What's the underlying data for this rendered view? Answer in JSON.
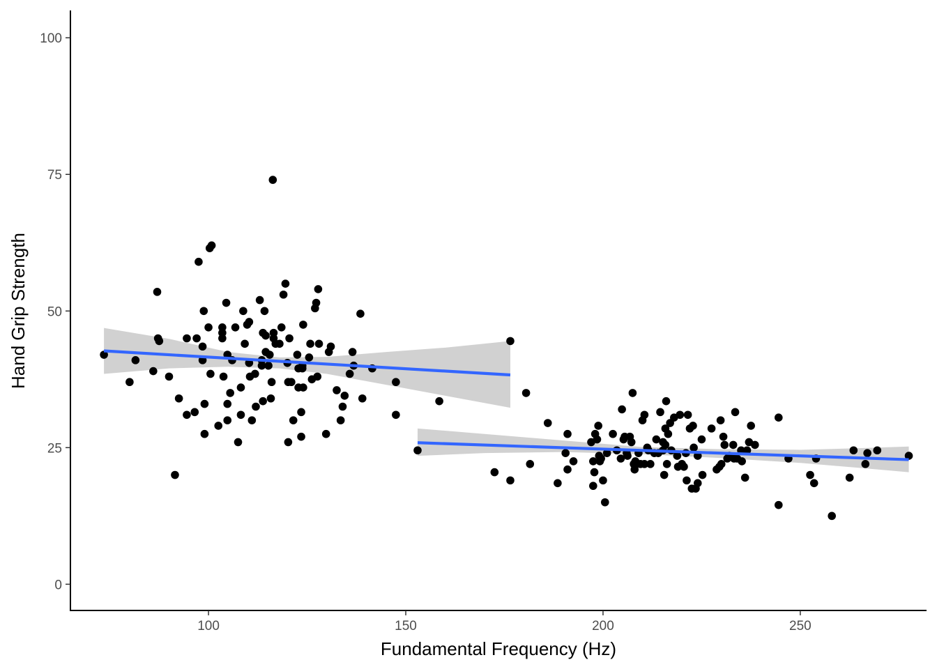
{
  "chart_data": {
    "type": "scatter",
    "title": "",
    "xlabel": "Fundamental Frequency (Hz)",
    "ylabel": "Hand Grip Strength",
    "xlim": [
      65,
      282
    ],
    "ylim": [
      -4.8,
      105
    ],
    "x_ticks": [
      100,
      150,
      200,
      250
    ],
    "x_tick_labels": [
      "100",
      "150",
      "200",
      "250"
    ],
    "y_ticks": [
      0,
      25,
      50,
      75,
      100
    ],
    "y_tick_labels": [
      "0",
      "25",
      "50",
      "75",
      "100"
    ],
    "grid": false,
    "legend": "none",
    "point_color": "#000000",
    "fit_color": "#3366FF",
    "band_color": "#999999",
    "points": [
      [
        73.5,
        42
      ],
      [
        80,
        37
      ],
      [
        81.5,
        41
      ],
      [
        86,
        39
      ],
      [
        87,
        53.5
      ],
      [
        87.2,
        45
      ],
      [
        87.5,
        44.5
      ],
      [
        90,
        38
      ],
      [
        91.5,
        20
      ],
      [
        92.5,
        34
      ],
      [
        94.5,
        45
      ],
      [
        94.5,
        31
      ],
      [
        96.5,
        31.5
      ],
      [
        97,
        45
      ],
      [
        97.5,
        59
      ],
      [
        98.5,
        43.5
      ],
      [
        98.5,
        41
      ],
      [
        98.8,
        50
      ],
      [
        99,
        27.5
      ],
      [
        99,
        33
      ],
      [
        100,
        47
      ],
      [
        100.3,
        61.5
      ],
      [
        100.8,
        62
      ],
      [
        100.5,
        38.5
      ],
      [
        102.5,
        29
      ],
      [
        103.5,
        47
      ],
      [
        103.5,
        46
      ],
      [
        103.5,
        45
      ],
      [
        103.8,
        38
      ],
      [
        104.5,
        51.5
      ],
      [
        104.8,
        42
      ],
      [
        104.8,
        33
      ],
      [
        104.8,
        30
      ],
      [
        105.5,
        35
      ],
      [
        106,
        41
      ],
      [
        106.8,
        47
      ],
      [
        107.5,
        26
      ],
      [
        108.2,
        31
      ],
      [
        108.2,
        36
      ],
      [
        108.8,
        50
      ],
      [
        109.2,
        44
      ],
      [
        109.8,
        47.5
      ],
      [
        110.3,
        48
      ],
      [
        110.3,
        40.5
      ],
      [
        110.5,
        38
      ],
      [
        111,
        30
      ],
      [
        111.8,
        38.5
      ],
      [
        112,
        32.5
      ],
      [
        113,
        52
      ],
      [
        113.5,
        41
      ],
      [
        113.5,
        40
      ],
      [
        113.8,
        33.5
      ],
      [
        113.8,
        46
      ],
      [
        114.2,
        50
      ],
      [
        114.5,
        45.5
      ],
      [
        114.5,
        42.5
      ],
      [
        115.2,
        40
      ],
      [
        115.5,
        42
      ],
      [
        115.8,
        34
      ],
      [
        116,
        37
      ],
      [
        116.3,
        74
      ],
      [
        116.5,
        45
      ],
      [
        116.5,
        46
      ],
      [
        117,
        44
      ],
      [
        118,
        44
      ],
      [
        118.5,
        47
      ],
      [
        119,
        53
      ],
      [
        119.5,
        55
      ],
      [
        120,
        40.5
      ],
      [
        120.2,
        37
      ],
      [
        120.2,
        26
      ],
      [
        120.5,
        45
      ],
      [
        121,
        37
      ],
      [
        121.5,
        30
      ],
      [
        122.5,
        42
      ],
      [
        122.8,
        39.5
      ],
      [
        122.8,
        36
      ],
      [
        123.5,
        27
      ],
      [
        123.5,
        31.5
      ],
      [
        123.8,
        39.5
      ],
      [
        123.8,
        40
      ],
      [
        124,
        47.5
      ],
      [
        124,
        36
      ],
      [
        125.5,
        41.5
      ],
      [
        125.8,
        44
      ],
      [
        126.2,
        37.5
      ],
      [
        127,
        50.5
      ],
      [
        127.3,
        51.5
      ],
      [
        127.6,
        38
      ],
      [
        127.8,
        54
      ],
      [
        128,
        44
      ],
      [
        129.8,
        27.5
      ],
      [
        130.5,
        42.5
      ],
      [
        131,
        43.5
      ],
      [
        132.5,
        35.5
      ],
      [
        133.5,
        30
      ],
      [
        134,
        32.5
      ],
      [
        134.5,
        34.5
      ],
      [
        135.8,
        38.5
      ],
      [
        136.5,
        42.5
      ],
      [
        136.8,
        40
      ],
      [
        138.5,
        49.5
      ],
      [
        139,
        34
      ],
      [
        141.5,
        39.5
      ],
      [
        147.5,
        37
      ],
      [
        147.5,
        31
      ],
      [
        153,
        24.5
      ],
      [
        158.5,
        33.5
      ],
      [
        172.5,
        20.5
      ],
      [
        176.5,
        44.5
      ],
      [
        176.5,
        19
      ],
      [
        180.5,
        35
      ],
      [
        181.5,
        22
      ],
      [
        186,
        29.5
      ],
      [
        188.5,
        18.5
      ],
      [
        190.5,
        24
      ],
      [
        191,
        27.5
      ],
      [
        191,
        21
      ],
      [
        192.5,
        22.5
      ],
      [
        197,
        26
      ],
      [
        197.5,
        22.5
      ],
      [
        197.5,
        18
      ],
      [
        197.8,
        20.5
      ],
      [
        198,
        27.5
      ],
      [
        198.5,
        26.5
      ],
      [
        198.8,
        29
      ],
      [
        199,
        23.5
      ],
      [
        199.2,
        22.5
      ],
      [
        199.5,
        23
      ],
      [
        200,
        19
      ],
      [
        200.5,
        15
      ],
      [
        201,
        24
      ],
      [
        202.5,
        27.5
      ],
      [
        203.5,
        24.5
      ],
      [
        204.5,
        23
      ],
      [
        204.8,
        32
      ],
      [
        205.2,
        26.5
      ],
      [
        205.5,
        27
      ],
      [
        206,
        24
      ],
      [
        206.2,
        23.5
      ],
      [
        206.8,
        27
      ],
      [
        207.2,
        26
      ],
      [
        207.5,
        35
      ],
      [
        207.8,
        22
      ],
      [
        208,
        21
      ],
      [
        208.2,
        22.5
      ],
      [
        208.5,
        22
      ],
      [
        209,
        24
      ],
      [
        209.5,
        22
      ],
      [
        210,
        30
      ],
      [
        210.5,
        22
      ],
      [
        210.5,
        31
      ],
      [
        211.2,
        25
      ],
      [
        211.5,
        24.5
      ],
      [
        212,
        22
      ],
      [
        213,
        24
      ],
      [
        213.5,
        26.5
      ],
      [
        214,
        24
      ],
      [
        214.5,
        31.5
      ],
      [
        215.2,
        26
      ],
      [
        215.2,
        24.5
      ],
      [
        215.5,
        20
      ],
      [
        215.8,
        28.5
      ],
      [
        215.8,
        25.5
      ],
      [
        216,
        33.5
      ],
      [
        216.2,
        22
      ],
      [
        216.5,
        27.5
      ],
      [
        217,
        29.5
      ],
      [
        217.3,
        24.5
      ],
      [
        218,
        30.5
      ],
      [
        218.8,
        23.5
      ],
      [
        219,
        21.5
      ],
      [
        219.5,
        31
      ],
      [
        220,
        22
      ],
      [
        220.5,
        21.5
      ],
      [
        221,
        24
      ],
      [
        221.2,
        19
      ],
      [
        221.5,
        31
      ],
      [
        222,
        28.5
      ],
      [
        222.5,
        17.5
      ],
      [
        222.8,
        29
      ],
      [
        223,
        25
      ],
      [
        223.5,
        17.5
      ],
      [
        224,
        23.5
      ],
      [
        224,
        18.5
      ],
      [
        225,
        26.5
      ],
      [
        225.2,
        20
      ],
      [
        227.5,
        28.5
      ],
      [
        228.8,
        21
      ],
      [
        229.5,
        21.5
      ],
      [
        229.8,
        30
      ],
      [
        230,
        22
      ],
      [
        230.5,
        27
      ],
      [
        230.8,
        25.5
      ],
      [
        231.5,
        23
      ],
      [
        232,
        23.5
      ],
      [
        233,
        25.5
      ],
      [
        233.2,
        23
      ],
      [
        233.5,
        31.5
      ],
      [
        234,
        23
      ],
      [
        235,
        24.5
      ],
      [
        235.2,
        22.5
      ],
      [
        236,
        19.5
      ],
      [
        236.5,
        24.5
      ],
      [
        237,
        26
      ],
      [
        237.5,
        29
      ],
      [
        238.5,
        25.5
      ],
      [
        244.5,
        14.5
      ],
      [
        244.5,
        30.5
      ],
      [
        247,
        23
      ],
      [
        252.5,
        20
      ],
      [
        253.5,
        18.5
      ],
      [
        254,
        23
      ],
      [
        258,
        12.5
      ],
      [
        262.5,
        19.5
      ],
      [
        263.5,
        24.5
      ],
      [
        266.5,
        22
      ],
      [
        267,
        24
      ],
      [
        269.5,
        24.5
      ],
      [
        277.5,
        23.5
      ]
    ],
    "fits": [
      {
        "x": [
          73.5,
          176.5
        ],
        "y": [
          42.7,
          38.3
        ],
        "band": [
          {
            "x": 73.5,
            "lo": 38.5,
            "hi": 46.9
          },
          {
            "x": 90,
            "lo": 39.5,
            "hi": 44.9
          },
          {
            "x": 105,
            "lo": 39.8,
            "hi": 42.5
          },
          {
            "x": 118,
            "lo": 39.5,
            "hi": 41.5
          },
          {
            "x": 130,
            "lo": 38.5,
            "hi": 41.6
          },
          {
            "x": 145,
            "lo": 36.5,
            "hi": 42.5
          },
          {
            "x": 160,
            "lo": 34.5,
            "hi": 43.3
          },
          {
            "x": 176.5,
            "lo": 32.3,
            "hi": 44.5
          }
        ]
      },
      {
        "x": [
          153,
          277.5
        ],
        "y": [
          25.9,
          22.8
        ],
        "band": [
          {
            "x": 153,
            "lo": 23.5,
            "hi": 28.5
          },
          {
            "x": 170,
            "lo": 24,
            "hi": 27.5
          },
          {
            "x": 190,
            "lo": 24.2,
            "hi": 26.3
          },
          {
            "x": 210,
            "lo": 23.8,
            "hi": 25.1
          },
          {
            "x": 230,
            "lo": 23.1,
            "hi": 24.7
          },
          {
            "x": 250,
            "lo": 22.2,
            "hi": 24.6
          },
          {
            "x": 265,
            "lo": 21.3,
            "hi": 24.9
          },
          {
            "x": 277.5,
            "lo": 20.5,
            "hi": 25.2
          }
        ]
      }
    ]
  }
}
